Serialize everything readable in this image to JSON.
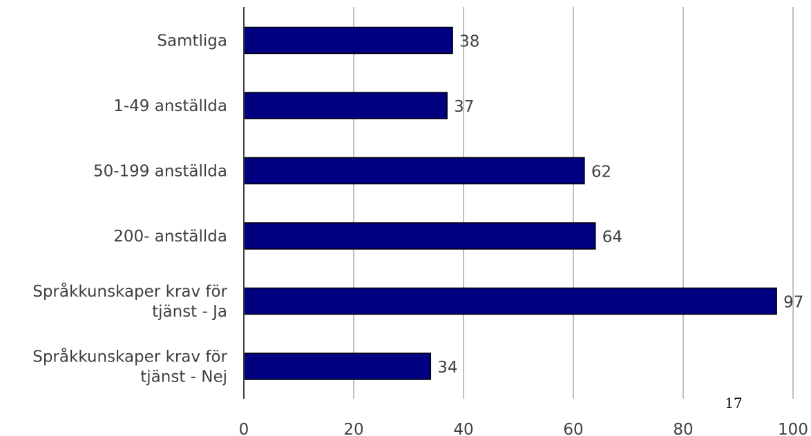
{
  "chart_data": {
    "type": "bar",
    "orientation": "horizontal",
    "categories": [
      [
        "Samtliga"
      ],
      [
        "1-49 anställda"
      ],
      [
        "50-199 anställda"
      ],
      [
        "200- anställda"
      ],
      [
        "Språkkunskaper krav för",
        "tjänst - Ja"
      ],
      [
        "Språkkunskaper krav för",
        "tjänst - Nej"
      ]
    ],
    "values": [
      38,
      37,
      62,
      64,
      97,
      34
    ],
    "xlim": [
      0,
      100
    ],
    "xticks": [
      0,
      20,
      40,
      60,
      80,
      100
    ],
    "grid": "vertical",
    "title": "",
    "xlabel": "",
    "ylabel": "",
    "colors": {
      "bar": "#000080",
      "bar_edge": "#000000",
      "grid": "#bfbfbf",
      "axis": "#404040"
    }
  },
  "page_number": "17"
}
